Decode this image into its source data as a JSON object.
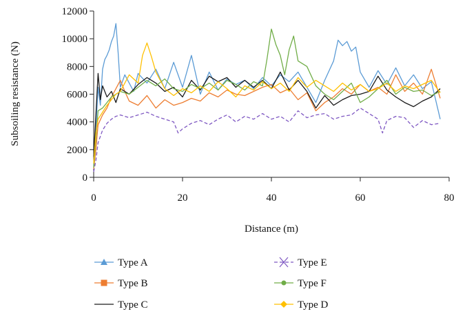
{
  "chart_data": {
    "type": "line",
    "title": "",
    "xlabel": "Distance (m)",
    "ylabel": "Subsoiling resistance (N)",
    "xlim": [
      0,
      80
    ],
    "ylim": [
      0,
      12000
    ],
    "x_ticks": [
      "0",
      "20",
      "40",
      "60",
      "80"
    ],
    "y_ticks": [
      "0",
      "2000",
      "4000",
      "6000",
      "8000",
      "10000",
      "12000"
    ],
    "grid": false,
    "legend_position": "bottom",
    "series": [
      {
        "name": "Type A",
        "color": "#5b9bd5",
        "marker": "triangle",
        "dash": "solid",
        "x": [
          0,
          0.5,
          1,
          1.5,
          2,
          2.5,
          3,
          3.5,
          4,
          4.5,
          5,
          5.5,
          6,
          7,
          8,
          9,
          10,
          12,
          14,
          16,
          18,
          20,
          22,
          24,
          26,
          28,
          30,
          32,
          34,
          36,
          38,
          40,
          42,
          44,
          46,
          48,
          50,
          52,
          54,
          55,
          56,
          57,
          58,
          59,
          60,
          62,
          64,
          66,
          68,
          70,
          72,
          74,
          76,
          78
        ],
        "values": [
          800,
          3500,
          6500,
          5200,
          7800,
          8500,
          8800,
          9200,
          9800,
          10200,
          11100,
          9000,
          6500,
          7400,
          6800,
          6200,
          7500,
          6800,
          7800,
          6400,
          8300,
          6500,
          8800,
          6000,
          7600,
          6300,
          7100,
          6700,
          7000,
          6400,
          7200,
          6600,
          7400,
          6900,
          7600,
          6500,
          5400,
          7000,
          8400,
          9900,
          9500,
          9800,
          9100,
          9400,
          7600,
          6500,
          7700,
          6700,
          7900,
          6600,
          7400,
          6400,
          6900,
          4200
        ]
      },
      {
        "name": "Type B",
        "color": "#ed7d31",
        "marker": "square",
        "dash": "solid",
        "x": [
          0,
          0.5,
          1,
          2,
          3,
          4,
          5,
          6,
          7,
          8,
          10,
          12,
          14,
          16,
          18,
          20,
          22,
          24,
          26,
          28,
          30,
          32,
          34,
          36,
          38,
          40,
          42,
          44,
          46,
          48,
          50,
          52,
          54,
          56,
          58,
          60,
          62,
          64,
          66,
          68,
          70,
          72,
          74,
          76,
          78
        ],
        "values": [
          600,
          2000,
          3800,
          4500,
          5000,
          5800,
          6400,
          7000,
          6200,
          5500,
          5200,
          5900,
          5000,
          5600,
          5200,
          5400,
          5700,
          5500,
          6100,
          5800,
          6300,
          6000,
          5900,
          6200,
          6500,
          6700,
          6100,
          6400,
          5600,
          6100,
          4800,
          5400,
          5800,
          6400,
          6000,
          6700,
          6200,
          6500,
          6000,
          7400,
          6200,
          6800,
          6000,
          7800,
          5700
        ]
      },
      {
        "name": "Type C",
        "color": "#1a1a1a",
        "marker": "none",
        "dash": "solid",
        "x": [
          0,
          0.5,
          1,
          1.5,
          2,
          3,
          4,
          5,
          6,
          8,
          10,
          12,
          14,
          16,
          18,
          20,
          22,
          24,
          26,
          28,
          30,
          32,
          34,
          36,
          38,
          40,
          42,
          44,
          46,
          48,
          50,
          52,
          54,
          56,
          58,
          60,
          62,
          64,
          66,
          68,
          70,
          72,
          74,
          76,
          78
        ],
        "values": [
          1500,
          4500,
          7500,
          5600,
          6600,
          5800,
          6200,
          5400,
          6400,
          6000,
          6700,
          7200,
          6800,
          6200,
          6500,
          5800,
          7000,
          6300,
          7300,
          6900,
          7200,
          6500,
          7000,
          6500,
          7000,
          6400,
          7600,
          6300,
          7000,
          6200,
          5000,
          5900,
          5200,
          5600,
          5900,
          6000,
          6200,
          7300,
          6300,
          5800,
          5400,
          5100,
          5500,
          5800,
          6400
        ]
      },
      {
        "name": "Type E",
        "color": "#7e57c2",
        "marker": "x",
        "dash": "dashed",
        "x": [
          0,
          0.5,
          1,
          2,
          3,
          4,
          5,
          6,
          8,
          10,
          12,
          14,
          16,
          18,
          19,
          20,
          22,
          24,
          26,
          28,
          30,
          32,
          34,
          36,
          38,
          40,
          42,
          44,
          46,
          48,
          50,
          52,
          54,
          56,
          58,
          60,
          62,
          64,
          65,
          66,
          68,
          70,
          72,
          74,
          76,
          78
        ],
        "values": [
          400,
          1200,
          2500,
          3400,
          3900,
          4200,
          4400,
          4500,
          4300,
          4500,
          4700,
          4400,
          4200,
          4000,
          3200,
          3500,
          3900,
          4100,
          3800,
          4200,
          4500,
          4000,
          4400,
          4200,
          4600,
          4200,
          4400,
          4000,
          4800,
          4300,
          4500,
          4600,
          4200,
          4400,
          4500,
          5000,
          4600,
          4200,
          3200,
          4100,
          4400,
          4300,
          3600,
          4100,
          3800,
          3900
        ]
      },
      {
        "name": "Type F",
        "color": "#70ad47",
        "marker": "circle",
        "dash": "solid",
        "x": [
          0,
          0.5,
          1,
          2,
          3,
          4,
          5,
          6,
          8,
          10,
          12,
          14,
          16,
          18,
          20,
          22,
          24,
          26,
          28,
          30,
          32,
          34,
          36,
          38,
          39,
          40,
          41,
          42,
          43,
          44,
          45,
          46,
          48,
          50,
          52,
          54,
          56,
          58,
          60,
          62,
          64,
          66,
          68,
          70,
          72,
          74,
          76,
          78
        ],
        "values": [
          700,
          2800,
          4800,
          5000,
          5400,
          5800,
          6000,
          6200,
          6000,
          6500,
          7000,
          6600,
          7100,
          6400,
          6200,
          6700,
          6400,
          6800,
          6300,
          7000,
          6700,
          6300,
          6900,
          6600,
          8500,
          10700,
          9600,
          8800,
          7400,
          9200,
          10200,
          8400,
          8000,
          6600,
          6000,
          5600,
          6200,
          6800,
          5400,
          5800,
          6400,
          7000,
          6000,
          6500,
          6200,
          6300,
          5900,
          6200
        ]
      },
      {
        "name": "Type D",
        "color": "#ffc000",
        "marker": "diamond",
        "dash": "solid",
        "x": [
          0,
          0.5,
          1,
          2,
          3,
          4,
          5,
          6,
          8,
          10,
          11,
          12,
          13,
          14,
          16,
          18,
          20,
          22,
          24,
          26,
          28,
          30,
          32,
          34,
          36,
          38,
          40,
          42,
          44,
          46,
          48,
          50,
          52,
          54,
          56,
          58,
          60,
          62,
          64,
          66,
          68,
          70,
          72,
          74,
          76,
          78
        ],
        "values": [
          1000,
          3200,
          4200,
          4700,
          5200,
          5600,
          6000,
          6200,
          7400,
          6800,
          8800,
          9700,
          8700,
          7600,
          6400,
          5900,
          6400,
          6100,
          6600,
          6200,
          6900,
          6400,
          5800,
          6600,
          6300,
          6900,
          6400,
          6800,
          6200,
          7200,
          6500,
          7000,
          6600,
          6200,
          6800,
          6300,
          6700,
          6200,
          6400,
          6800,
          6200,
          6600,
          6400,
          6700,
          7000,
          6100
        ]
      }
    ]
  }
}
